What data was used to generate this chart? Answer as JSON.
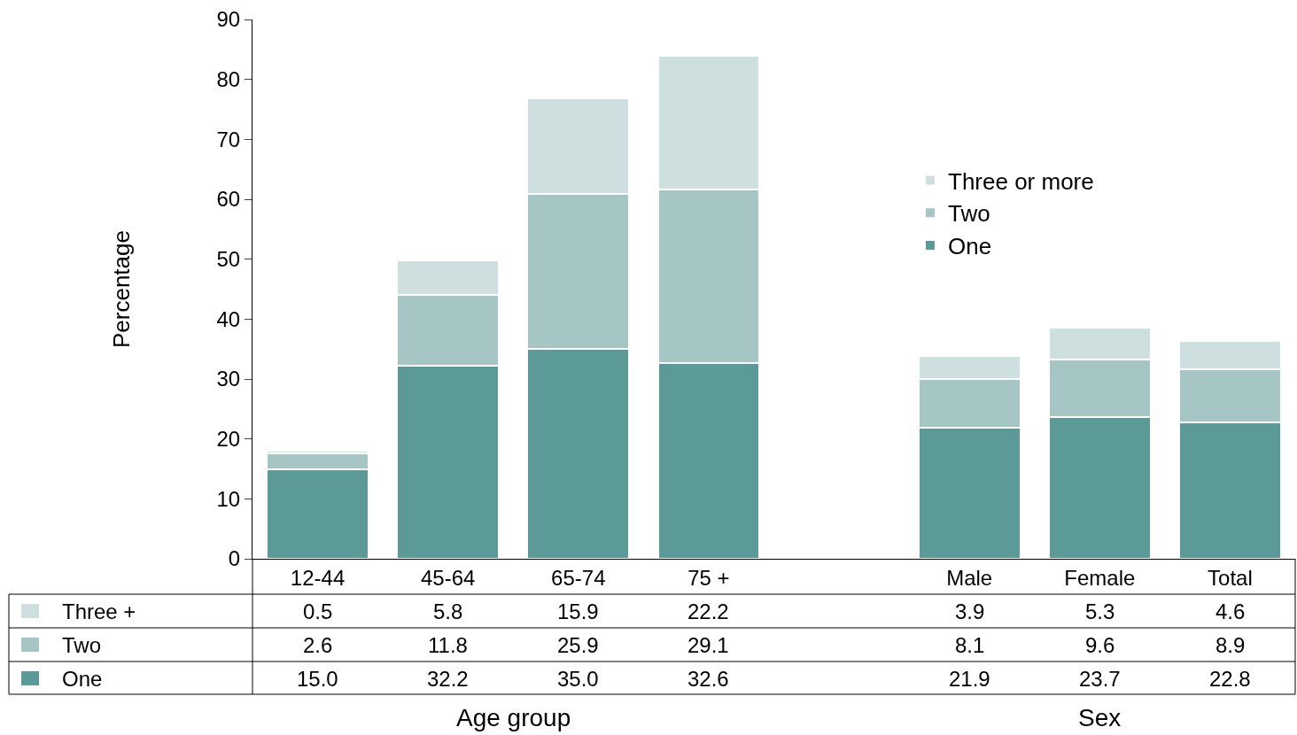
{
  "chart_data": {
    "type": "bar",
    "stacked": true,
    "ylabel": "Percentage",
    "categories": [
      "12-44",
      "45-64",
      "65-74",
      "75 +",
      null,
      "Male",
      "Female",
      "Total"
    ],
    "series": [
      {
        "name": "One",
        "color": "#5b9a96",
        "values": [
          15.0,
          32.2,
          35.0,
          32.6,
          null,
          21.9,
          23.7,
          22.8
        ],
        "value_labels": [
          "15.0",
          "32.2",
          "35.0",
          "32.6",
          null,
          "21.9",
          "23.7",
          "22.8"
        ]
      },
      {
        "name": "Two",
        "color": "#a5c6c4",
        "values": [
          2.6,
          11.8,
          25.9,
          29.1,
          null,
          8.1,
          9.6,
          8.9
        ],
        "value_labels": [
          "2.6",
          "11.8",
          "25.9",
          "29.1",
          null,
          "8.1",
          "9.6",
          "8.9"
        ]
      },
      {
        "name": "Three or more",
        "color": "#cde0df",
        "values": [
          0.5,
          5.8,
          15.9,
          22.2,
          null,
          3.9,
          5.3,
          4.6
        ],
        "value_labels": [
          "0.5",
          "5.8",
          "15.9",
          "22.2",
          null,
          "3.9",
          "5.3",
          "4.6"
        ]
      }
    ],
    "ylim": [
      0,
      90
    ],
    "yticks": [
      0,
      10,
      20,
      30,
      40,
      50,
      60,
      70,
      80,
      90
    ],
    "legend": "top right",
    "annotations": [
      "One",
      "Two",
      "Three +",
      "Age group",
      "Sex"
    ]
  }
}
